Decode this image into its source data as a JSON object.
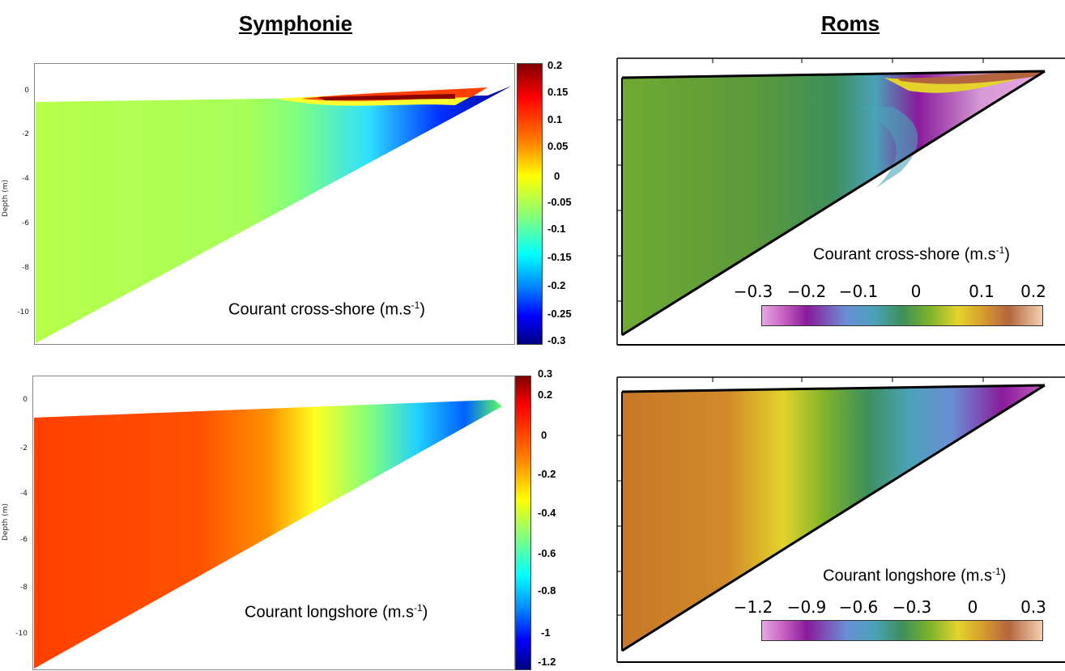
{
  "headings": {
    "left": "Symphonie",
    "right": "Roms"
  },
  "chart_data": [
    {
      "type": "heatmap",
      "panel": "Symphonie cross-shore",
      "ylabel": "Depth (m)",
      "yticks": [
        "0",
        "-2",
        "-4",
        "-6",
        "-8",
        "-10"
      ],
      "colorbar_labels": [
        "0.2",
        "0.15",
        "0.1",
        "0.05",
        "0",
        "-0.05",
        "-0.1",
        "-0.15",
        "-0.2",
        "-0.25",
        "-0.3"
      ],
      "caption": "Courant cross-shore (m.s",
      "caption_exp": "-1",
      "caption_close": ")",
      "colormap": [
        "#800000",
        "#ff0000",
        "#ff8000",
        "#ffff00",
        "#80ff80",
        "#00ffff",
        "#0080ff",
        "#0000ff",
        "#000080"
      ]
    },
    {
      "type": "heatmap",
      "panel": "Symphonie longshore",
      "ylabel": "Depth (m)",
      "yticks": [
        "0",
        "-2",
        "-4",
        "-6",
        "-8",
        "-10"
      ],
      "colorbar_labels": [
        "0.3",
        "0.2",
        "0",
        "-0.2",
        "-0.4",
        "-0.6",
        "-0.8",
        "-1",
        "-1.2"
      ],
      "caption": "Courant longshore (m.s",
      "caption_exp": "-1",
      "caption_close": ")",
      "colormap": [
        "#800000",
        "#ff0000",
        "#ff8000",
        "#ffff00",
        "#80ff80",
        "#00ffff",
        "#0080ff",
        "#0000ff",
        "#000080"
      ]
    },
    {
      "type": "heatmap",
      "panel": "Roms cross-shore",
      "colorbar_labels": [
        "−0.3",
        "−0.2",
        "−0.1",
        "0",
        "0.1",
        "0.2"
      ],
      "caption": "Courant cross-shore (m.s",
      "caption_exp": "-1",
      "caption_close": ")",
      "colormap": [
        "#e9a7e3",
        "#8a1b9b",
        "#6a8fd5",
        "#4aa2b8",
        "#3e8f5a",
        "#7fb32a",
        "#e3d32c",
        "#d9a12c",
        "#b4653f",
        "#f3d0b0"
      ]
    },
    {
      "type": "heatmap",
      "panel": "Roms longshore",
      "colorbar_labels": [
        "−1.2",
        "−0.9",
        "−0.6",
        "−0.3",
        "0",
        "0.3"
      ],
      "caption": "Courant longshore (m.s",
      "caption_exp": "-1",
      "caption_close": ")",
      "colormap": [
        "#e9a7e3",
        "#8a1b9b",
        "#6a8fd5",
        "#4aa2b8",
        "#3e8f5a",
        "#7fb32a",
        "#e3d32c",
        "#d9a12c",
        "#b4653f",
        "#f3d0b0"
      ]
    }
  ]
}
